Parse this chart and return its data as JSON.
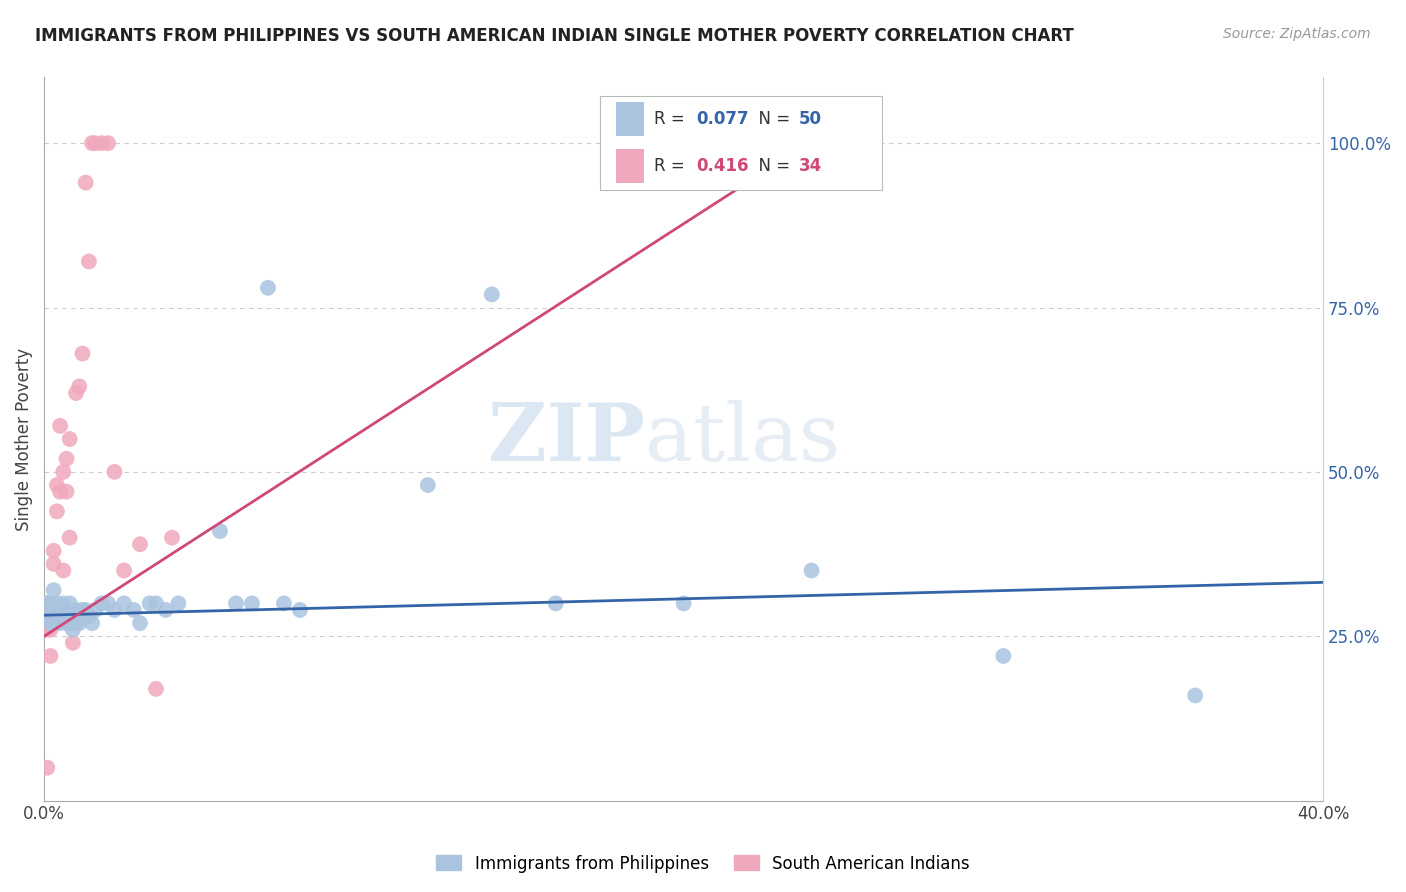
{
  "title": "IMMIGRANTS FROM PHILIPPINES VS SOUTH AMERICAN INDIAN SINGLE MOTHER POVERTY CORRELATION CHART",
  "source": "Source: ZipAtlas.com",
  "ylabel": "Single Mother Poverty",
  "xlim": [
    0.0,
    0.4
  ],
  "ylim": [
    0.0,
    1.1
  ],
  "grid_color": "#cccccc",
  "background_color": "#ffffff",
  "watermark_zip": "ZIP",
  "watermark_atlas": "atlas",
  "blue_color": "#aac4e0",
  "pink_color": "#f0a8bc",
  "blue_line_color": "#3465a8",
  "pink_line_color": "#d04878",
  "legend_label1": "Immigrants from Philippines",
  "legend_label2": "South American Indians",
  "blue_R": "0.077",
  "blue_N": "50",
  "pink_R": "0.416",
  "pink_N": "34",
  "blue_scatter_x": [
    0.001,
    0.001,
    0.002,
    0.002,
    0.003,
    0.003,
    0.003,
    0.004,
    0.004,
    0.005,
    0.005,
    0.006,
    0.006,
    0.007,
    0.007,
    0.008,
    0.008,
    0.009,
    0.009,
    0.01,
    0.01,
    0.011,
    0.012,
    0.013,
    0.014,
    0.015,
    0.016,
    0.018,
    0.02,
    0.022,
    0.025,
    0.028,
    0.03,
    0.033,
    0.035,
    0.038,
    0.042,
    0.055,
    0.06,
    0.065,
    0.07,
    0.075,
    0.08,
    0.12,
    0.14,
    0.16,
    0.2,
    0.24,
    0.3,
    0.36
  ],
  "blue_scatter_y": [
    0.3,
    0.28,
    0.3,
    0.27,
    0.32,
    0.29,
    0.27,
    0.28,
    0.3,
    0.27,
    0.29,
    0.28,
    0.3,
    0.29,
    0.27,
    0.27,
    0.3,
    0.28,
    0.26,
    0.29,
    0.27,
    0.27,
    0.29,
    0.29,
    0.28,
    0.27,
    0.29,
    0.3,
    0.3,
    0.29,
    0.3,
    0.29,
    0.27,
    0.3,
    0.3,
    0.29,
    0.3,
    0.41,
    0.3,
    0.3,
    0.78,
    0.3,
    0.29,
    0.48,
    0.77,
    0.3,
    0.3,
    0.35,
    0.22,
    0.16
  ],
  "pink_scatter_x": [
    0.001,
    0.001,
    0.001,
    0.002,
    0.002,
    0.002,
    0.003,
    0.003,
    0.004,
    0.004,
    0.005,
    0.005,
    0.006,
    0.006,
    0.007,
    0.007,
    0.008,
    0.008,
    0.009,
    0.01,
    0.011,
    0.012,
    0.013,
    0.014,
    0.015,
    0.016,
    0.018,
    0.02,
    0.022,
    0.025,
    0.03,
    0.035,
    0.04,
    0.23
  ],
  "pink_scatter_y": [
    0.3,
    0.26,
    0.05,
    0.29,
    0.26,
    0.22,
    0.38,
    0.36,
    0.48,
    0.44,
    0.57,
    0.47,
    0.5,
    0.35,
    0.52,
    0.47,
    0.4,
    0.55,
    0.24,
    0.62,
    0.63,
    0.68,
    0.94,
    0.82,
    1.0,
    1.0,
    1.0,
    1.0,
    0.5,
    0.35,
    0.39,
    0.17,
    0.4,
    1.0
  ],
  "blue_trend_x": [
    0.0,
    0.4
  ],
  "blue_trend_y": [
    0.282,
    0.332
  ],
  "pink_trend_x": [
    0.0,
    0.255
  ],
  "pink_trend_y": [
    0.25,
    1.05
  ],
  "ytick_positions": [
    0.25,
    0.5,
    0.75,
    1.0
  ],
  "ytick_labels": [
    "25.0%",
    "50.0%",
    "75.0%",
    "100.0%"
  ]
}
